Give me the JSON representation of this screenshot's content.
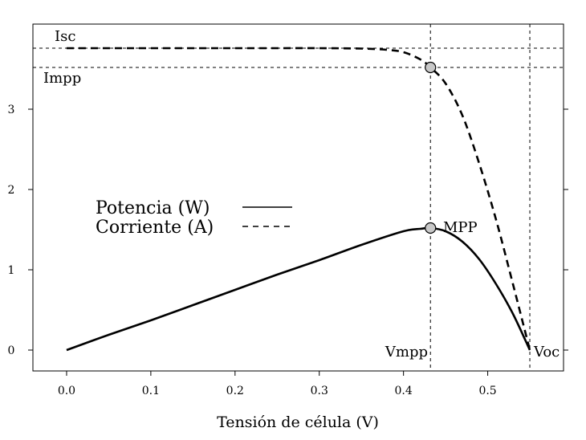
{
  "chart_data": {
    "type": "line",
    "title": "",
    "xlabel": "Tensión de célula (V)",
    "ylabel": "",
    "xlim": [
      -0.04,
      0.59
    ],
    "ylim": [
      -0.26,
      4.06
    ],
    "x_ticks": [
      "0.0",
      "0.1",
      "0.2",
      "0.3",
      "0.4",
      "0.5"
    ],
    "y_ticks": [
      "0",
      "1",
      "2",
      "3"
    ],
    "grid": false,
    "legend_position": "middle-left",
    "series": [
      {
        "name": "Potencia (W)",
        "line_style": "solid",
        "x": [
          0.0,
          0.05,
          0.1,
          0.15,
          0.2,
          0.25,
          0.3,
          0.35,
          0.4,
          0.42,
          0.432,
          0.45,
          0.47,
          0.49,
          0.51,
          0.53,
          0.55
        ],
        "y": [
          0.0,
          0.19,
          0.37,
          0.56,
          0.75,
          0.94,
          1.12,
          1.31,
          1.48,
          1.51,
          1.52,
          1.48,
          1.35,
          1.13,
          0.82,
          0.45,
          0.0
        ]
      },
      {
        "name": "Corriente (A)",
        "line_style": "dashed",
        "x": [
          0.0,
          0.05,
          0.1,
          0.15,
          0.2,
          0.25,
          0.3,
          0.35,
          0.38,
          0.4,
          0.42,
          0.432,
          0.45,
          0.47,
          0.49,
          0.51,
          0.53,
          0.55
        ],
        "y": [
          3.76,
          3.76,
          3.76,
          3.76,
          3.76,
          3.76,
          3.76,
          3.755,
          3.74,
          3.71,
          3.62,
          3.52,
          3.32,
          2.92,
          2.32,
          1.62,
          0.82,
          0.0
        ]
      }
    ],
    "reference_lines": {
      "Isc": 3.76,
      "Impp": 3.52,
      "Vmpp": 0.432,
      "Voc": 0.55
    },
    "annotations": {
      "isc": "Isc",
      "impp": "Impp",
      "vmpp": "Vmpp",
      "voc": "Voc",
      "mpp": "MPP"
    },
    "mpp_points": [
      {
        "x": 0.432,
        "y": 1.52
      },
      {
        "x": 0.432,
        "y": 3.52
      }
    ],
    "colors": {
      "line": "#000000",
      "marker_fill": "#c8c8c8"
    }
  }
}
